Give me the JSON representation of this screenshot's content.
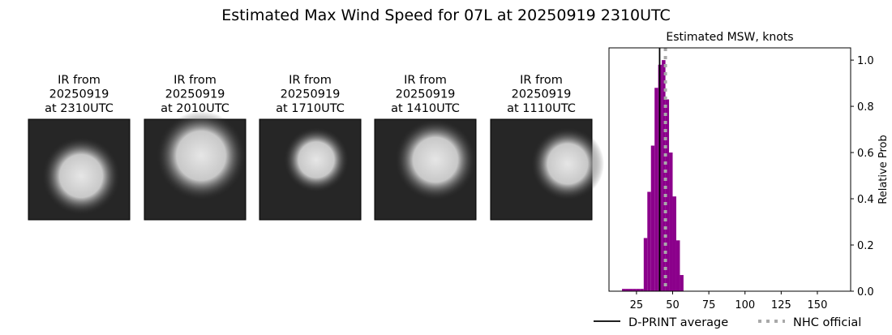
{
  "title": "Estimated Max Wind Speed for 07L at 20250919 2310UTC",
  "images": [
    {
      "lines": [
        "IR from",
        "20250919",
        "at 2310UTC"
      ]
    },
    {
      "lines": [
        "IR from",
        "20250919",
        "at 2010UTC"
      ]
    },
    {
      "lines": [
        "IR from",
        "20250919",
        "at 1710UTC"
      ]
    },
    {
      "lines": [
        "IR from",
        "20250919",
        "at 1410UTC"
      ]
    },
    {
      "lines": [
        "IR from",
        "20250919",
        "at 1110UTC"
      ]
    }
  ],
  "chart_data": {
    "type": "histogram",
    "title": "Estimated MSW, knots",
    "y_label": "Relative Prob",
    "color": "#8b008b",
    "bins": [
      15,
      17.5,
      20,
      22.5,
      25,
      27.5,
      30,
      32.5,
      35,
      37.5,
      40,
      42.5,
      45,
      47.5,
      50,
      52.5,
      55,
      57.5
    ],
    "values": [
      0.01,
      0.01,
      0.01,
      0.01,
      0.01,
      0.01,
      0.23,
      0.43,
      0.63,
      0.88,
      0.98,
      1.0,
      0.83,
      0.6,
      0.41,
      0.22,
      0.07
    ],
    "xlim": [
      6,
      173
    ],
    "ylim": [
      0,
      1.053
    ],
    "xticks": [
      25,
      50,
      75,
      100,
      125,
      150
    ],
    "yticks": [
      {
        "value": 0,
        "label": "0.0"
      },
      {
        "value": 0.2,
        "label": "0.2"
      },
      {
        "value": 0.4,
        "label": "0.4"
      },
      {
        "value": 0.6,
        "label": "0.6"
      },
      {
        "value": 0.8,
        "label": "0.8"
      },
      {
        "value": 1.0,
        "label": "1.0"
      }
    ],
    "lines": [
      {
        "name": "D-PRINT average",
        "value": 41,
        "color": "#000000",
        "style": "solid"
      },
      {
        "name": "NHC official",
        "value": 45,
        "color": "#a9a9a9",
        "style": "dotted"
      }
    ]
  }
}
